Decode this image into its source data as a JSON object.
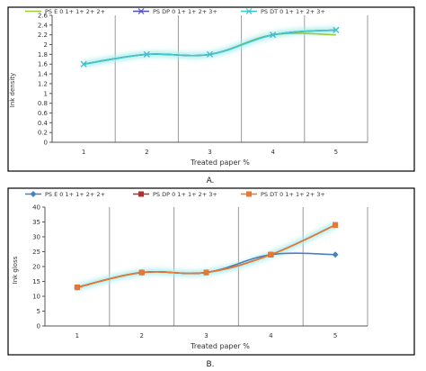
{
  "chart_data": [
    {
      "id": "A",
      "type": "line",
      "caption": "A.",
      "xlabel": "Treated paper %",
      "ylabel": "Ink density",
      "categories": [
        "1",
        "2",
        "3",
        "4",
        "5"
      ],
      "ylim": [
        0,
        2.6
      ],
      "yticks": [
        "0",
        "0.2",
        "0.4",
        "0.6",
        "0.8",
        "1",
        "1.2",
        "1.4",
        "1.6",
        "1.8",
        "2",
        "2.2",
        "2.4",
        "2.6"
      ],
      "legend_position": "top",
      "grid": "vertical",
      "series": [
        {
          "name": "PS E 0 1+ 1+ 2+ 2+",
          "color": "#9acd32",
          "marker": "none",
          "values": [
            1.6,
            1.8,
            1.8,
            2.2,
            2.2
          ]
        },
        {
          "name": "PS DP 0 1+ 1+ 2+ 3+",
          "color": "#5050c0",
          "marker": "x",
          "values": [
            1.6,
            1.8,
            1.8,
            2.2,
            2.3
          ]
        },
        {
          "name": "PS DT 0 1+ 1+ 2+ 3+",
          "color": "#40c8c8",
          "marker": "x",
          "values": [
            1.6,
            1.8,
            1.8,
            2.2,
            2.3
          ]
        }
      ]
    },
    {
      "id": "B",
      "type": "line",
      "caption": "B.",
      "xlabel": "Treated paper %",
      "ylabel": "Ink gloss",
      "categories": [
        "1",
        "2",
        "3",
        "4",
        "5"
      ],
      "ylim": [
        0,
        40
      ],
      "yticks": [
        "0",
        "5",
        "10",
        "15",
        "20",
        "25",
        "30",
        "35",
        "40"
      ],
      "legend_position": "top",
      "grid": "vertical",
      "series": [
        {
          "name": "PS E 0 1+ 1+ 2+ 2+",
          "color": "#4a7fc0",
          "marker": "diamond",
          "values": [
            13,
            18,
            18,
            24,
            24
          ]
        },
        {
          "name": "PS DP 0 1+ 1+ 2+ 3+",
          "color": "#b03030",
          "marker": "square",
          "values": [
            13,
            18,
            18,
            24,
            34
          ]
        },
        {
          "name": "PS DT 0 1+ 1+ 2+ 3+",
          "color": "#e87830",
          "marker": "square",
          "values": [
            13,
            18,
            18,
            24,
            34
          ]
        }
      ]
    }
  ]
}
